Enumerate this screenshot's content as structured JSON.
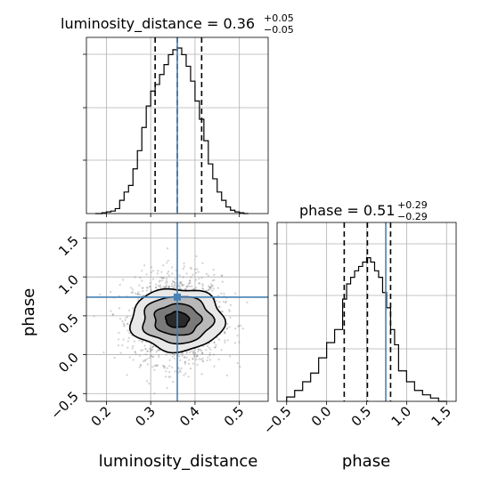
{
  "chart_data": {
    "type": "corner",
    "parameters": [
      "luminosity_distance",
      "phase"
    ],
    "truths": {
      "luminosity_distance": 0.36,
      "phase": 0.74
    },
    "titles": [
      {
        "param": "luminosity_distance",
        "text": "luminosity_distance = 0.36",
        "plus": "+0.05",
        "minus": "−0.05"
      },
      {
        "param": "phase",
        "text": "phase = 0.51",
        "plus": "+0.29",
        "minus": "−0.29"
      }
    ],
    "xlabels": [
      "luminosity_distance",
      "phase"
    ],
    "ylabels": [
      "phase"
    ],
    "grid": true,
    "hist_luminosity_distance": {
      "range": [
        0.155,
        0.565
      ],
      "quantiles": [
        0.31,
        0.36,
        0.415
      ],
      "bin_edges": [
        0.175,
        0.19,
        0.2,
        0.21,
        0.22,
        0.23,
        0.24,
        0.25,
        0.26,
        0.27,
        0.28,
        0.29,
        0.3,
        0.31,
        0.32,
        0.33,
        0.34,
        0.35,
        0.36,
        0.37,
        0.38,
        0.39,
        0.4,
        0.41,
        0.42,
        0.43,
        0.44,
        0.45,
        0.46,
        0.47,
        0.48,
        0.49,
        0.5,
        0.51,
        0.52
      ],
      "counts": [
        0.0,
        0.005,
        0.01,
        0.015,
        0.03,
        0.08,
        0.13,
        0.17,
        0.27,
        0.38,
        0.52,
        0.65,
        0.74,
        0.78,
        0.84,
        0.9,
        0.96,
        0.99,
        1.0,
        0.96,
        0.89,
        0.8,
        0.68,
        0.57,
        0.44,
        0.3,
        0.21,
        0.13,
        0.08,
        0.04,
        0.02,
        0.01,
        0.005,
        0.0
      ],
      "xticks": [],
      "yticks": [
        0.3,
        0.6,
        0.9,
        1.2
      ]
    },
    "hist_phase": {
      "range": [
        -0.62,
        1.62
      ],
      "quantiles": [
        0.22,
        0.51,
        0.8
      ],
      "bin_edges": [
        -0.5,
        -0.4,
        -0.3,
        -0.2,
        -0.1,
        0.0,
        0.1,
        0.2,
        0.25,
        0.3,
        0.35,
        0.4,
        0.45,
        0.5,
        0.55,
        0.6,
        0.65,
        0.7,
        0.75,
        0.8,
        0.85,
        0.9,
        1.0,
        1.1,
        1.2,
        1.3,
        1.4,
        1.5
      ],
      "counts": [
        0.02,
        0.05,
        0.09,
        0.13,
        0.2,
        0.27,
        0.33,
        0.47,
        0.54,
        0.57,
        0.6,
        0.62,
        0.64,
        0.66,
        0.64,
        0.6,
        0.57,
        0.5,
        0.43,
        0.33,
        0.26,
        0.14,
        0.09,
        0.05,
        0.03,
        0.015,
        0.0
      ],
      "xticks": [
        -0.5,
        0.0,
        0.5,
        1.0,
        1.5
      ],
      "yticks": [
        0.25,
        0.5,
        0.75,
        1.0
      ]
    },
    "scatter_2d": {
      "x_param": "luminosity_distance",
      "y_param": "phase",
      "xlim": [
        0.155,
        0.565
      ],
      "ylim": [
        -0.6,
        1.7
      ],
      "xticks": [
        0.2,
        0.3,
        0.4,
        0.5
      ],
      "yticks": [
        -0.5,
        0.0,
        0.5,
        1.0,
        1.5
      ],
      "center": [
        0.36,
        0.45
      ],
      "spread": [
        0.05,
        0.28
      ],
      "n_points": 1800,
      "contour_levels_sigma": [
        0.5,
        1.0,
        1.5,
        2.0
      ]
    },
    "colors": {
      "hist": "#000000",
      "truth": "#4682b4",
      "grid": "#b0b0b0",
      "points": "#7f7f7f"
    }
  }
}
